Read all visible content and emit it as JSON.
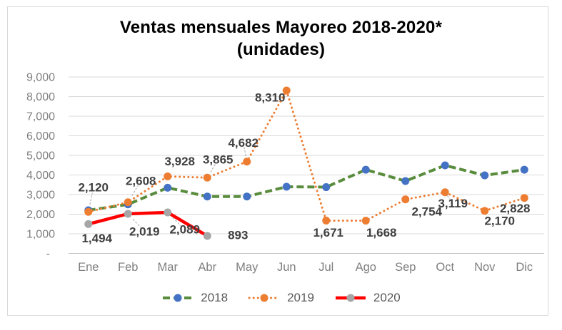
{
  "title": "Ventas mensuales Mayoreo 2018-2020*",
  "subtitle": "(unidades)",
  "chart_data": {
    "type": "line",
    "categories": [
      "Ene",
      "Feb",
      "Mar",
      "Abr",
      "May",
      "Jun",
      "Jul",
      "Ago",
      "Sep",
      "Oct",
      "Nov",
      "Dic"
    ],
    "y_axis": {
      "min": 0,
      "max": 9000,
      "step": 1000,
      "tick_labels_top_to_bottom": [
        "9,000",
        "8,000",
        "7,000",
        "6,000",
        "5,000",
        "4,000",
        "3,000",
        "2,000",
        "1,000",
        "-"
      ]
    },
    "gridlines": true,
    "legend": {
      "position": "bottom",
      "entries": [
        "2018",
        "2019",
        "2020"
      ]
    },
    "series": [
      {
        "name": "2018",
        "line_style": "dashed",
        "line_color": "#598C3C",
        "marker_color": "#4472C4",
        "values": [
          2200,
          2500,
          3350,
          2900,
          2900,
          3400,
          3380,
          4270,
          3690,
          4490,
          3980,
          4270
        ],
        "data_labels": []
      },
      {
        "name": "2019",
        "line_style": "dotted",
        "line_color": "#ED7D31",
        "marker_color": "#ED7D31",
        "values": [
          2120,
          2608,
          3928,
          3865,
          4682,
          8310,
          1671,
          1668,
          2754,
          3119,
          2170,
          2828
        ],
        "data_labels": [
          "2,120",
          "2,608",
          "3,928",
          "3,865",
          "4,682",
          "8,310",
          "1,671",
          "1,668",
          "2,754",
          "3,119",
          "2,170",
          "2,828"
        ]
      },
      {
        "name": "2020",
        "line_style": "solid",
        "line_color": "#FF0000",
        "marker_color": "#A6A6A6",
        "values": [
          1494,
          2019,
          2089,
          893,
          null,
          null,
          null,
          null,
          null,
          null,
          null,
          null
        ],
        "data_labels": [
          "1,494",
          "2,019",
          "2,089",
          "893"
        ]
      }
    ]
  },
  "colors": {
    "gridline": "#D9D9D9",
    "axis_line": "#BFBFBF",
    "axis_text": "#7F7F7F",
    "data_label_text": "#3F3F3F",
    "legend_text": "#595959",
    "title_text": "#000000",
    "frame_border": "#D9D9D9",
    "leader_line": "#A6A6A6"
  }
}
